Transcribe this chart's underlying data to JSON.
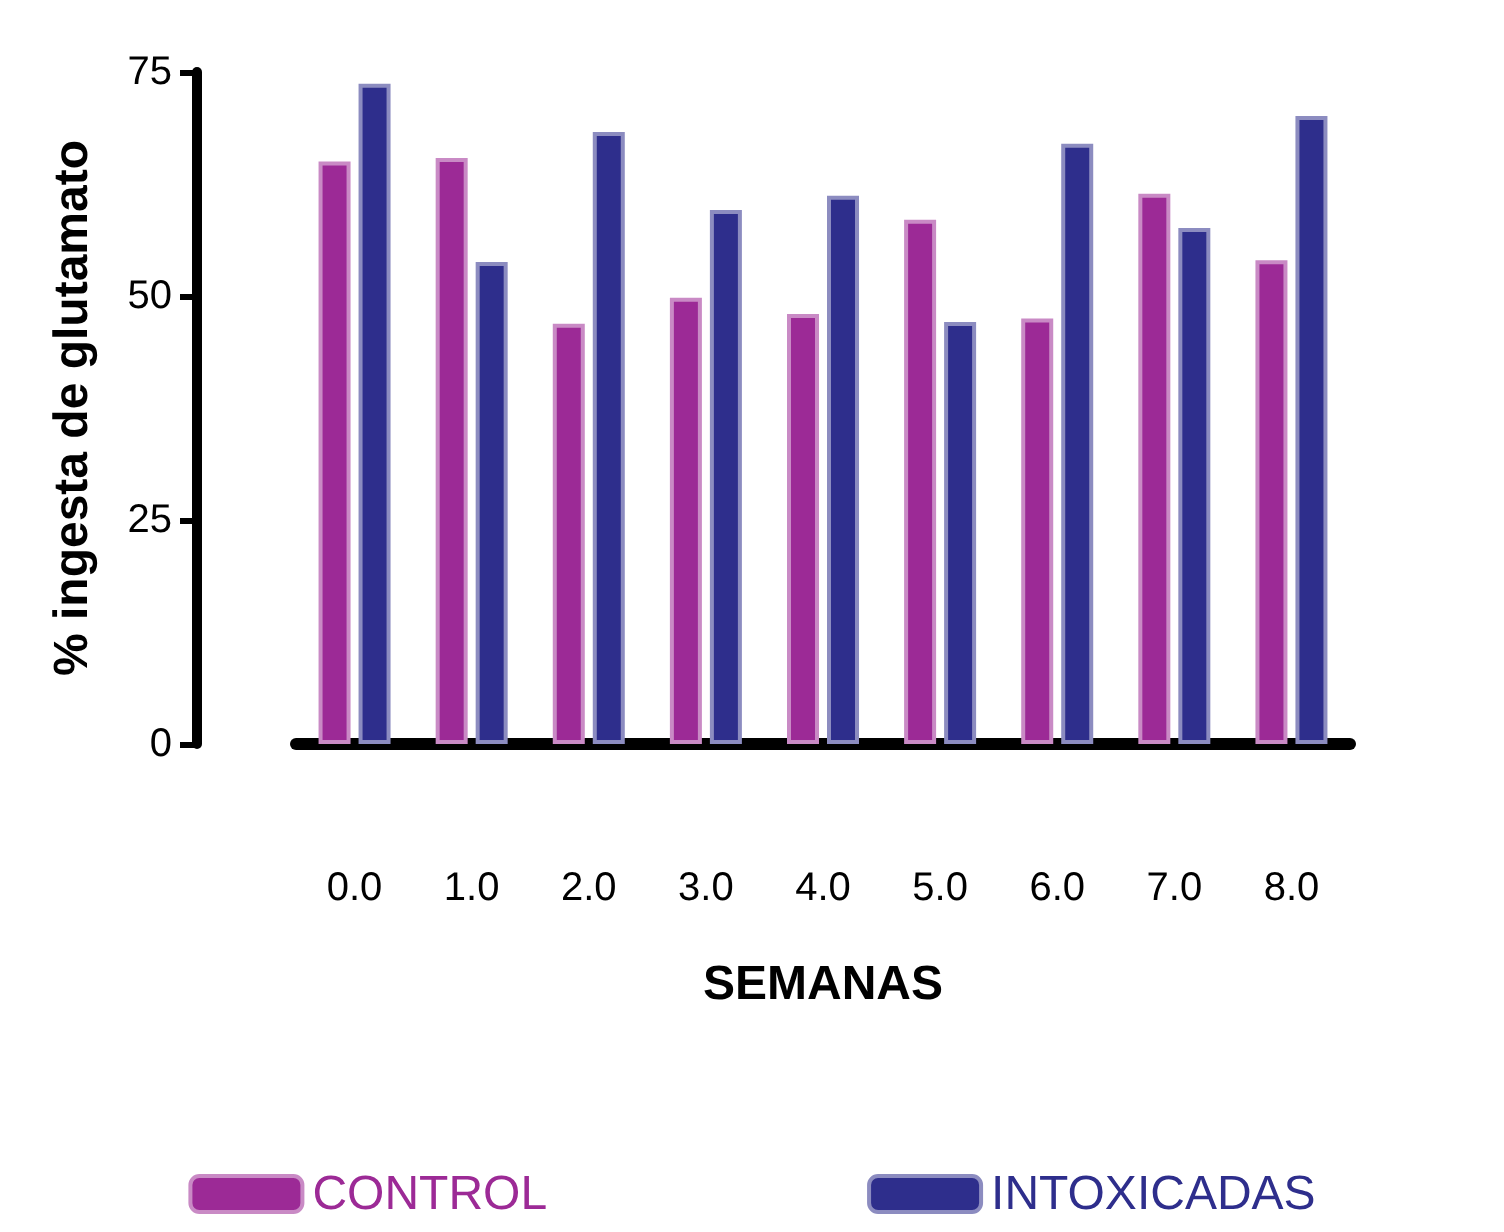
{
  "chart_data": {
    "type": "bar",
    "xlabel": "SEMANAS",
    "ylabel": "% ingesta de glutamato",
    "categories": [
      "0.0",
      "1.0",
      "2.0",
      "3.0",
      "4.0",
      "5.0",
      "6.0",
      "7.0",
      "8.0"
    ],
    "series": [
      {
        "name": "CONTROL",
        "color": "#9c2a96",
        "values": [
          65.0,
          65.4,
          46.9,
          49.8,
          48.0,
          58.5,
          47.5,
          61.4,
          54.0
        ]
      },
      {
        "name": "INTOXICADAS",
        "color": "#2e2e8c",
        "values": [
          73.7,
          53.8,
          68.3,
          59.6,
          61.2,
          47.1,
          67.0,
          57.6,
          70.1
        ]
      }
    ],
    "ylim": [
      0,
      75
    ],
    "yticks": [
      0,
      25,
      50,
      75
    ],
    "grid": false,
    "legend": "bottom"
  }
}
